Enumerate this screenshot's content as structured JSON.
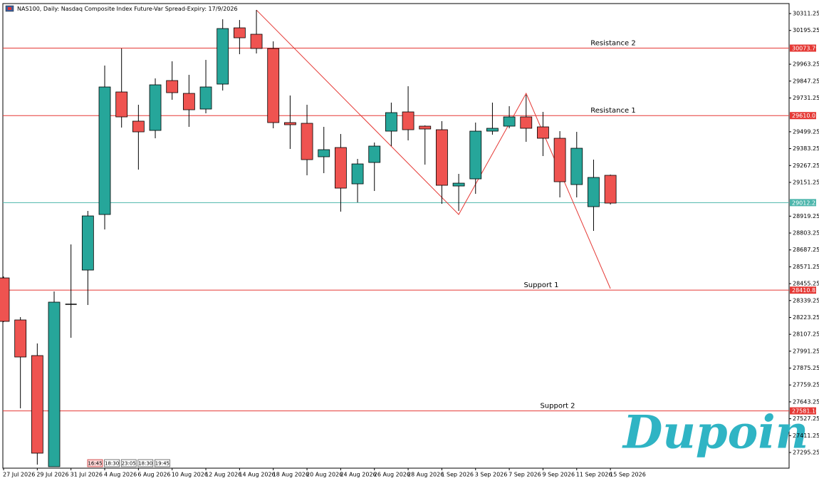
{
  "chart_data": {
    "type": "candlestick",
    "title": "NAS100, Daily:  Nasdaq Composite Index Future-Var Spread-Expiry: 17/9/2026",
    "categories": [
      "27 Jul 2026",
      null,
      "29 Jul 2026",
      null,
      "31 Jul 2026",
      null,
      "4 Aug 2026",
      null,
      "6 Aug 2026",
      null,
      "10 Aug 2026",
      null,
      "12 Aug 2026",
      null,
      "14 Aug 2026",
      null,
      "18 Aug 2026",
      null,
      "20 Aug 2026",
      null,
      "24 Aug 2026",
      null,
      "26 Aug 2026",
      null,
      "28 Aug 2026",
      null,
      "1 Sep 2026",
      null,
      "3 Sep 2026",
      null,
      "7 Sep 2026",
      null,
      "9 Sep 2026",
      null,
      "11 Sep 2026",
      null,
      "15 Sep 2026"
    ],
    "open": [
      28494.8,
      28206.0,
      27961.2,
      27197.4,
      28313.7,
      28548.7,
      28930.6,
      29772.7,
      29572.0,
      29508.3,
      29851.0,
      29762.9,
      29655.2,
      29826.6,
      30213.3,
      30169.3,
      30071.3,
      29562.2,
      29557.3,
      29327.2,
      29390.8,
      29141.1,
      29288.0,
      29503.4,
      29635.6,
      29537.7,
      29513.2,
      29126.4,
      29175.4,
      29503.4,
      29537.7,
      29601.3,
      29532.8,
      29454.4,
      29136.2,
      28984.4,
      29199.9
    ],
    "high": [
      28504.6,
      28225.5,
      28044.4,
      28401.8,
      28724.9,
      28955.1,
      29953.9,
      30071.3,
      29684.6,
      29865.7,
      29983.2,
      29890.2,
      29993.0,
      30272.1,
      30267.2,
      30335.7,
      30120.3,
      29748.2,
      29684.6,
      29532.8,
      29483.8,
      29312.5,
      29425.1,
      29699.3,
      29811.9,
      29542.6,
      29572.0,
      29209.7,
      29562.2,
      29699.3,
      29674.8,
      29753.1,
      29635.6,
      29503.4,
      29498.5,
      29307.6,
      29204.8
    ],
    "low": [
      28191.3,
      27598.8,
      27212.1,
      27197.4,
      28083.6,
      28308.8,
      28827.7,
      29527.9,
      29239.0,
      29454.4,
      29718.9,
      29532.8,
      29625.8,
      29782.5,
      30032.2,
      30037.1,
      29523.0,
      29381.0,
      29199.9,
      29214.6,
      28950.2,
      29013.8,
      29092.2,
      29400.6,
      29439.8,
      29273.3,
      29004.0,
      28955.1,
      29072.6,
      29478.9,
      29523.0,
      29430.0,
      29332.1,
      29048.1,
      29048.1,
      28818.0,
      28999.1
    ],
    "close": [
      28196.2,
      27951.4,
      27290.5,
      28328.4,
      28313.7,
      28920.8,
      29807.0,
      29601.3,
      29498.5,
      29821.7,
      29767.8,
      29650.3,
      29807.0,
      30208.4,
      30144.8,
      30071.3,
      29562.2,
      29547.5,
      29307.6,
      29376.1,
      29111.7,
      29278.2,
      29400.6,
      29630.7,
      29513.2,
      29518.1,
      29131.3,
      29146.0,
      29503.4,
      29523.0,
      29601.3,
      29523.0,
      29454.4,
      29155.8,
      29385.9,
      29185.2,
      29008.9
    ],
    "up_color": "#26a69a",
    "down_color": "#ef5350",
    "ylim": [
      27187.5,
      30380
    ],
    "yticks": [
      30311.25,
      30195.25,
      29963.25,
      29847.25,
      29731.25,
      29499.25,
      29383.25,
      29267.25,
      29151.25,
      28919.25,
      28803.25,
      28687.25,
      28571.25,
      28455.25,
      28339.25,
      28223.25,
      28107.25,
      27991.25,
      27875.25,
      27759.25,
      27643.25,
      27527.25,
      27411.25,
      27295.25
    ],
    "grid": false,
    "hlines": [
      {
        "price": 30073.79,
        "text": "Resistance 2",
        "color": "#e53935"
      },
      {
        "price": 29610.05,
        "text": "Resistance 1",
        "color": "#e53935"
      },
      {
        "price": 29012.25,
        "color": "#4db6ac"
      },
      {
        "price": 28410.83,
        "text": "Support 1",
        "color": "#e53935"
      },
      {
        "price": 27581.16,
        "text": "Support 2",
        "color": "#e53935"
      }
    ],
    "trendline": {
      "bars": [
        15,
        27,
        31,
        36
      ],
      "prices": [
        30335.7,
        28930.6,
        29762.9,
        28421.4
      ],
      "color": "#e53935"
    }
  },
  "time_boxes": [
    "16:45",
    "18:30",
    "23:05",
    "18:30",
    "19:45"
  ],
  "logo": "Dupoin"
}
